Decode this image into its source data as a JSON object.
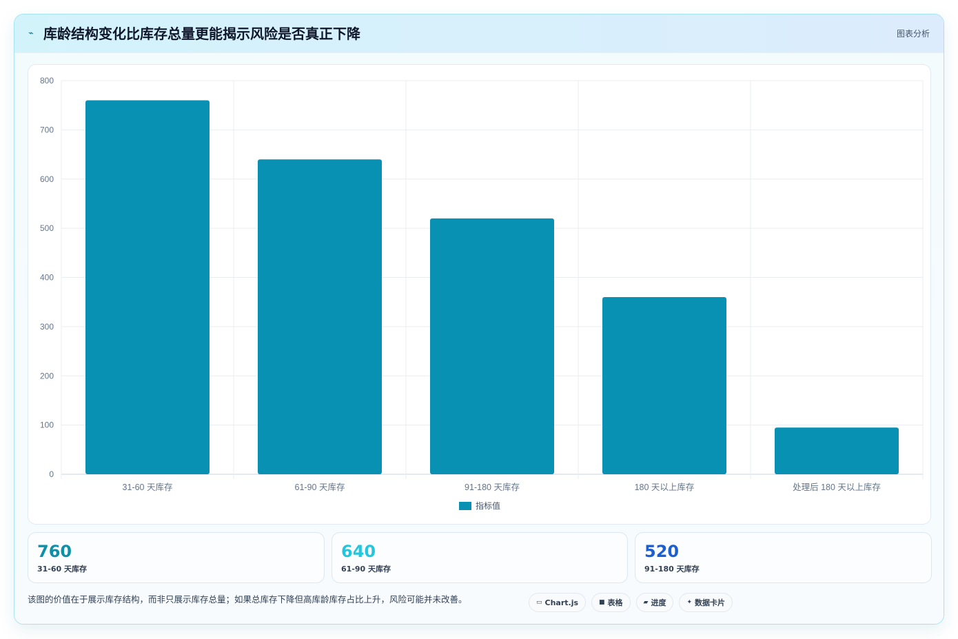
{
  "header": {
    "icon": "pulse-icon",
    "title": "库龄结构变化比库存总量更能揭示风险是否真正下降",
    "tag": "图表分析"
  },
  "chart_data": {
    "type": "bar",
    "categories": [
      "31-60 天库存",
      "61-90 天库存",
      "91-180 天库存",
      "180 天以上库存",
      "处理后 180 天以上库存"
    ],
    "series": [
      {
        "name": "指标值",
        "values": [
          760,
          640,
          520,
          360,
          95
        ],
        "color": "#0891b2"
      }
    ],
    "ylim": [
      0,
      800
    ],
    "yticks": [
      0,
      100,
      200,
      300,
      400,
      500,
      600,
      700,
      800
    ],
    "grid": true,
    "legend": "bottom-center"
  },
  "stats": [
    {
      "value": "760",
      "label": "31-60 天库存",
      "color": "#0e91a8"
    },
    {
      "value": "640",
      "label": "61-90 天库存",
      "color": "#22c7dd"
    },
    {
      "value": "520",
      "label": "91-180 天库存",
      "color": "#1d5fd1"
    }
  ],
  "note": "该图的价值在于展示库存结构，而非只展示库存总量；如果总库存下降但高库龄库存占比上升，风险可能并未改善。",
  "tags": [
    {
      "icon": "monitor-icon",
      "glyph": "▭",
      "label": "Chart.js"
    },
    {
      "icon": "table-icon",
      "glyph": "■",
      "label": "表格"
    },
    {
      "icon": "progress-icon",
      "glyph": "▰",
      "label": "进度"
    },
    {
      "icon": "sparkle-icon",
      "glyph": "✦",
      "label": "数据卡片"
    }
  ]
}
